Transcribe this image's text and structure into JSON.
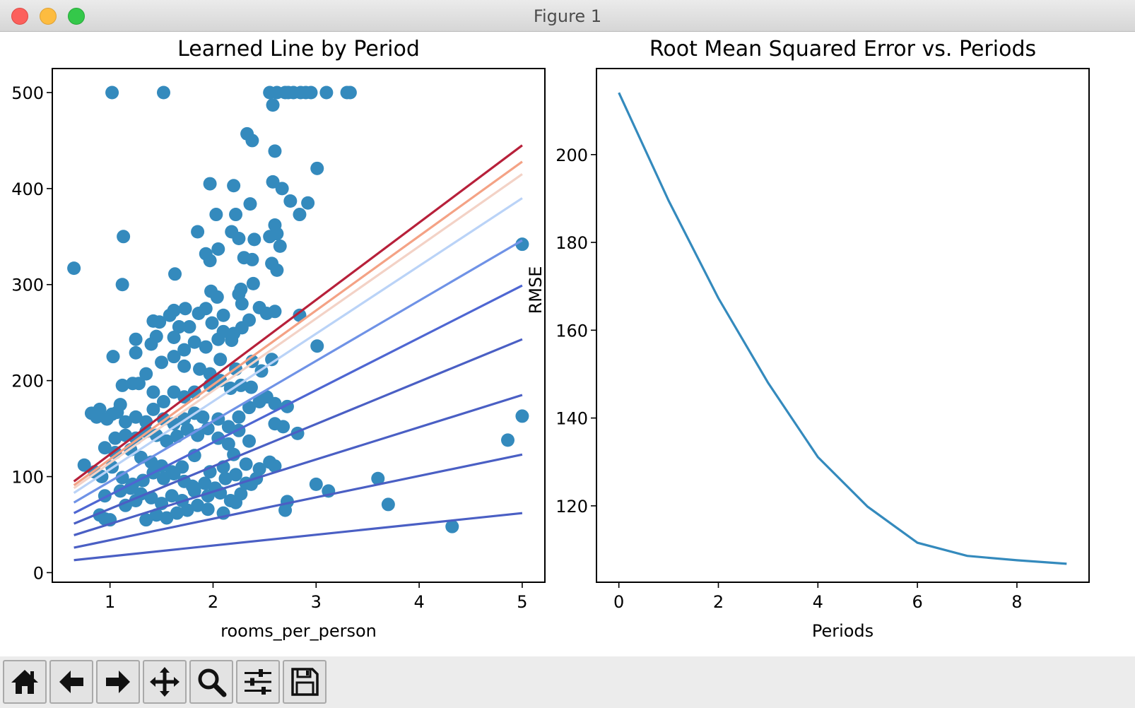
{
  "window": {
    "title": "Figure 1"
  },
  "toolbar": {
    "buttons": [
      "home-button",
      "back-button",
      "forward-button",
      "pan-button",
      "zoom-button",
      "configure-subplots-button",
      "save-button"
    ]
  },
  "colors": {
    "scatter": "#348abd",
    "rmse_line": "#348abd"
  },
  "chart_data": [
    {
      "type": "scatter",
      "title": "Learned Line by Period",
      "xlabel": "rooms_per_person",
      "ylabel": "",
      "xlim": [
        0.44,
        5.22
      ],
      "ylim": [
        -10,
        525
      ],
      "xticks": [
        1,
        2,
        3,
        4,
        5
      ],
      "yticks": [
        0,
        100,
        200,
        300,
        400,
        500
      ],
      "points": [
        [
          0.65,
          317
        ],
        [
          1.02,
          500
        ],
        [
          1.52,
          500
        ],
        [
          1.13,
          350
        ],
        [
          1.12,
          300
        ],
        [
          1.03,
          225
        ],
        [
          2.55,
          500
        ],
        [
          2.58,
          487
        ],
        [
          2.62,
          500
        ],
        [
          2.7,
          500
        ],
        [
          2.73,
          500
        ],
        [
          2.78,
          500
        ],
        [
          2.85,
          500
        ],
        [
          2.9,
          500
        ],
        [
          2.95,
          500
        ],
        [
          3.1,
          500
        ],
        [
          3.3,
          500
        ],
        [
          3.33,
          500
        ],
        [
          2.33,
          457
        ],
        [
          2.38,
          450
        ],
        [
          2.6,
          439
        ],
        [
          3.01,
          421
        ],
        [
          1.97,
          405
        ],
        [
          2.2,
          403
        ],
        [
          2.58,
          407
        ],
        [
          2.67,
          400
        ],
        [
          2.75,
          387
        ],
        [
          2.92,
          385
        ],
        [
          2.84,
          373
        ],
        [
          2.03,
          373
        ],
        [
          2.22,
          373
        ],
        [
          2.36,
          384
        ],
        [
          2.55,
          350
        ],
        [
          2.6,
          362
        ],
        [
          2.62,
          353
        ],
        [
          2.65,
          340
        ],
        [
          1.85,
          355
        ],
        [
          1.93,
          332
        ],
        [
          2.05,
          337
        ],
        [
          1.97,
          325
        ],
        [
          2.18,
          355
        ],
        [
          2.25,
          348
        ],
        [
          2.3,
          328
        ],
        [
          2.38,
          326
        ],
        [
          2.4,
          347
        ],
        [
          2.57,
          322
        ],
        [
          2.62,
          315
        ],
        [
          1.63,
          311
        ],
        [
          1.98,
          293
        ],
        [
          2.04,
          287
        ],
        [
          2.27,
          295
        ],
        [
          2.39,
          301
        ],
        [
          1.93,
          275
        ],
        [
          2.1,
          268
        ],
        [
          2.25,
          290
        ],
        [
          2.28,
          280
        ],
        [
          2.45,
          276
        ],
        [
          2.52,
          270
        ],
        [
          2.6,
          272
        ],
        [
          2.84,
          268
        ],
        [
          3.01,
          236
        ],
        [
          1.42,
          262
        ],
        [
          1.48,
          261
        ],
        [
          1.58,
          268
        ],
        [
          1.62,
          273
        ],
        [
          1.73,
          275
        ],
        [
          1.77,
          256
        ],
        [
          1.67,
          256
        ],
        [
          1.86,
          270
        ],
        [
          1.99,
          260
        ],
        [
          2.1,
          251
        ],
        [
          2.2,
          249
        ],
        [
          2.28,
          255
        ],
        [
          2.35,
          263
        ],
        [
          2.18,
          242
        ],
        [
          2.05,
          243
        ],
        [
          1.93,
          235
        ],
        [
          1.82,
          240
        ],
        [
          1.72,
          232
        ],
        [
          1.62,
          245
        ],
        [
          1.4,
          238
        ],
        [
          1.45,
          246
        ],
        [
          1.25,
          243
        ],
        [
          1.25,
          229
        ],
        [
          1.5,
          219
        ],
        [
          1.62,
          225
        ],
        [
          1.72,
          215
        ],
        [
          1.87,
          212
        ],
        [
          1.97,
          207
        ],
        [
          2.07,
          222
        ],
        [
          2.22,
          212
        ],
        [
          2.38,
          220
        ],
        [
          2.47,
          210
        ],
        [
          2.57,
          222
        ],
        [
          1.12,
          195
        ],
        [
          1.22,
          197
        ],
        [
          1.28,
          197
        ],
        [
          1.35,
          207
        ],
        [
          1.42,
          188
        ],
        [
          1.52,
          178
        ],
        [
          1.62,
          188
        ],
        [
          1.72,
          183
        ],
        [
          1.82,
          188
        ],
        [
          1.97,
          195
        ],
        [
          2.07,
          200
        ],
        [
          2.17,
          192
        ],
        [
          2.27,
          195
        ],
        [
          2.37,
          193
        ],
        [
          2.52,
          183
        ],
        [
          2.6,
          176
        ],
        [
          2.72,
          173
        ],
        [
          0.82,
          166
        ],
        [
          0.87,
          162
        ],
        [
          0.9,
          170
        ],
        [
          0.97,
          160
        ],
        [
          1.02,
          165
        ],
        [
          1.07,
          167
        ],
        [
          1.1,
          175
        ],
        [
          1.15,
          157
        ],
        [
          1.25,
          162
        ],
        [
          1.35,
          157
        ],
        [
          1.42,
          170
        ],
        [
          1.52,
          160
        ],
        [
          1.62,
          155
        ],
        [
          1.72,
          160
        ],
        [
          1.82,
          166
        ],
        [
          1.9,
          162
        ],
        [
          2.05,
          160
        ],
        [
          2.15,
          152
        ],
        [
          2.25,
          162
        ],
        [
          2.35,
          172
        ],
        [
          2.45,
          178
        ],
        [
          2.6,
          155
        ],
        [
          2.68,
          152
        ],
        [
          1.05,
          140
        ],
        [
          1.15,
          143
        ],
        [
          1.25,
          140
        ],
        [
          1.35,
          147
        ],
        [
          1.45,
          143
        ],
        [
          1.55,
          137
        ],
        [
          1.65,
          142
        ],
        [
          1.75,
          149
        ],
        [
          1.85,
          143
        ],
        [
          1.95,
          150
        ],
        [
          2.05,
          140
        ],
        [
          2.15,
          134
        ],
        [
          2.25,
          148
        ],
        [
          2.35,
          137
        ],
        [
          2.82,
          145
        ],
        [
          0.95,
          130
        ],
        [
          1.05,
          125
        ],
        [
          1.2,
          128
        ],
        [
          1.3,
          120
        ],
        [
          1.4,
          115
        ],
        [
          1.5,
          111
        ],
        [
          1.6,
          105
        ],
        [
          1.7,
          110
        ],
        [
          1.82,
          122
        ],
        [
          1.97,
          105
        ],
        [
          2.1,
          110
        ],
        [
          2.2,
          123
        ],
        [
          2.32,
          113
        ],
        [
          2.45,
          108
        ],
        [
          2.55,
          115
        ],
        [
          2.6,
          111
        ],
        [
          0.75,
          112
        ],
        [
          0.85,
          105
        ],
        [
          0.92,
          100
        ],
        [
          1.02,
          110
        ],
        [
          1.12,
          99
        ],
        [
          1.22,
          92
        ],
        [
          1.32,
          96
        ],
        [
          1.42,
          104
        ],
        [
          1.52,
          98
        ],
        [
          1.62,
          103
        ],
        [
          1.72,
          95
        ],
        [
          1.82,
          85
        ],
        [
          1.92,
          93
        ],
        [
          2.02,
          88
        ],
        [
          2.12,
          98
        ],
        [
          2.22,
          102
        ],
        [
          2.32,
          93
        ],
        [
          2.42,
          98
        ],
        [
          0.95,
          80
        ],
        [
          1.1,
          85
        ],
        [
          1.2,
          88
        ],
        [
          1.3,
          82
        ],
        [
          1.4,
          78
        ],
        [
          1.5,
          72
        ],
        [
          1.6,
          80
        ],
        [
          1.7,
          75
        ],
        [
          1.8,
          90
        ],
        [
          1.95,
          80
        ],
        [
          2.07,
          83
        ],
        [
          2.17,
          75
        ],
        [
          2.27,
          82
        ],
        [
          2.37,
          92
        ],
        [
          0.9,
          60
        ],
        [
          0.95,
          56
        ],
        [
          1.0,
          55
        ],
        [
          1.15,
          70
        ],
        [
          1.25,
          75
        ],
        [
          1.35,
          55
        ],
        [
          1.45,
          60
        ],
        [
          1.55,
          57
        ],
        [
          1.65,
          62
        ],
        [
          1.75,
          65
        ],
        [
          1.85,
          70
        ],
        [
          1.95,
          66
        ],
        [
          2.1,
          62
        ],
        [
          2.22,
          73
        ],
        [
          2.72,
          74
        ],
        [
          2.7,
          65
        ],
        [
          3.0,
          92
        ],
        [
          3.12,
          85
        ],
        [
          3.6,
          98
        ],
        [
          3.7,
          71
        ],
        [
          4.32,
          48
        ],
        [
          4.86,
          138
        ],
        [
          5.0,
          163
        ],
        [
          5.0,
          342
        ]
      ],
      "lines": [
        {
          "color": "#4a5fc4",
          "y": [
            13,
            62
          ]
        },
        {
          "color": "#4a5fc4",
          "y": [
            26,
            123
          ]
        },
        {
          "color": "#4a5fc4",
          "y": [
            39,
            185
          ]
        },
        {
          "color": "#4a5fc4",
          "y": [
            51,
            243
          ]
        },
        {
          "color": "#4e66d2",
          "y": [
            62,
            299
          ]
        },
        {
          "color": "#6f92e6",
          "y": [
            73,
            346
          ]
        },
        {
          "color": "#bad3f7",
          "y": [
            83,
            390
          ]
        },
        {
          "color": "#f3d2c6",
          "y": [
            88,
            415
          ]
        },
        {
          "color": "#f4a285",
          "y": [
            91,
            428
          ]
        },
        {
          "color": "#b7203a",
          "y": [
            95,
            445
          ]
        }
      ],
      "line_x": [
        0.65,
        5.0
      ]
    },
    {
      "type": "line",
      "title": "Root Mean Squared Error vs. Periods",
      "xlabel": "Periods",
      "ylabel": "RMSE",
      "xlim": [
        -0.45,
        9.45
      ],
      "ylim": [
        102.6,
        219.6
      ],
      "xticks": [
        0,
        2,
        4,
        6,
        8
      ],
      "yticks": [
        120,
        140,
        160,
        180,
        200
      ],
      "x": [
        0,
        1,
        2,
        3,
        4,
        5,
        6,
        7,
        8,
        9
      ],
      "values": [
        214.1,
        189.5,
        167.3,
        148.0,
        131.1,
        119.8,
        111.6,
        108.6,
        107.6,
        106.8
      ]
    }
  ]
}
